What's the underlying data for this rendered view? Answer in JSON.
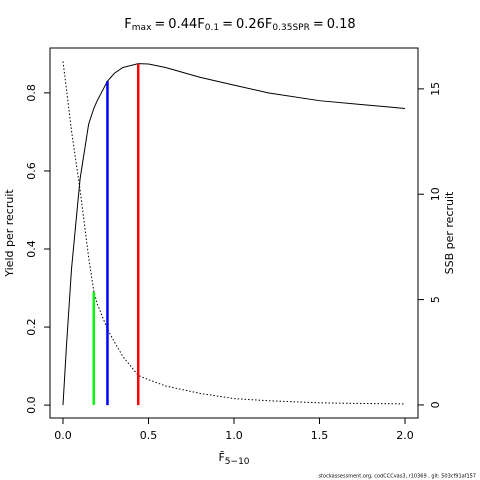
{
  "chart_data": {
    "type": "line",
    "title_parts": [
      {
        "symbol": "F",
        "subscript": "max",
        "operator": "=",
        "value": 0.44
      },
      {
        "symbol": "F",
        "subscript": "0.1",
        "operator": "=",
        "value": 0.26
      },
      {
        "symbol": "F",
        "subscript": "0.35SPR",
        "operator": "=",
        "value": 0.18
      }
    ],
    "xlabel": {
      "symbol": "F̄",
      "subscript": "5−10"
    },
    "ylabel": "Yield per recruit",
    "y2label": "SSB per recruit",
    "footer": "stockassessment.org, codCCCvas3, r10369 , git: 503cf91af157",
    "x": [
      0,
      0.02,
      0.05,
      0.1,
      0.15,
      0.18,
      0.2,
      0.26,
      0.3,
      0.35,
      0.44,
      0.5,
      0.6,
      0.8,
      1.0,
      1.2,
      1.5,
      1.75,
      2.0
    ],
    "series": [
      {
        "name": "Yield per recruit",
        "color": "#000000",
        "dash": "solid",
        "axis": "y",
        "values": [
          0,
          0.15,
          0.35,
          0.58,
          0.72,
          0.76,
          0.78,
          0.83,
          0.85,
          0.865,
          0.875,
          0.874,
          0.865,
          0.84,
          0.82,
          0.8,
          0.78,
          0.77,
          0.76
        ]
      },
      {
        "name": "SSB per recruit",
        "color": "#000000",
        "dash": "dotted",
        "axis": "y2",
        "values": [
          16.3,
          15.0,
          13.0,
          10.2,
          7.0,
          5.4,
          4.8,
          3.6,
          3.0,
          2.3,
          1.4,
          1.2,
          0.9,
          0.55,
          0.3,
          0.2,
          0.1,
          0.07,
          0.05
        ]
      }
    ],
    "reference_lines": [
      {
        "x": 0.44,
        "top": 0.875,
        "axis": "y",
        "color": "#ff0000"
      },
      {
        "x": 0.26,
        "top": 0.83,
        "axis": "y",
        "color": "#0000ff"
      },
      {
        "x": 0.18,
        "top": 5.36,
        "axis": "y2",
        "color": "#00ff00"
      }
    ],
    "xlim": [
      -0.076,
      2.076
    ],
    "ylim": [
      -0.033,
      0.915
    ],
    "y2lim": [
      -0.62,
      16.94
    ],
    "xticks": [
      {
        "value": 0,
        "label": "0.0"
      },
      0.5,
      {
        "value": 1,
        "label": "1.0"
      },
      1.5,
      {
        "value": 2,
        "label": "2.0"
      }
    ],
    "yticks": [
      {
        "value": 0,
        "label": "0.0"
      },
      0.2,
      0.4,
      0.6,
      0.8
    ],
    "y2ticks": [
      0,
      5,
      10,
      15
    ]
  }
}
